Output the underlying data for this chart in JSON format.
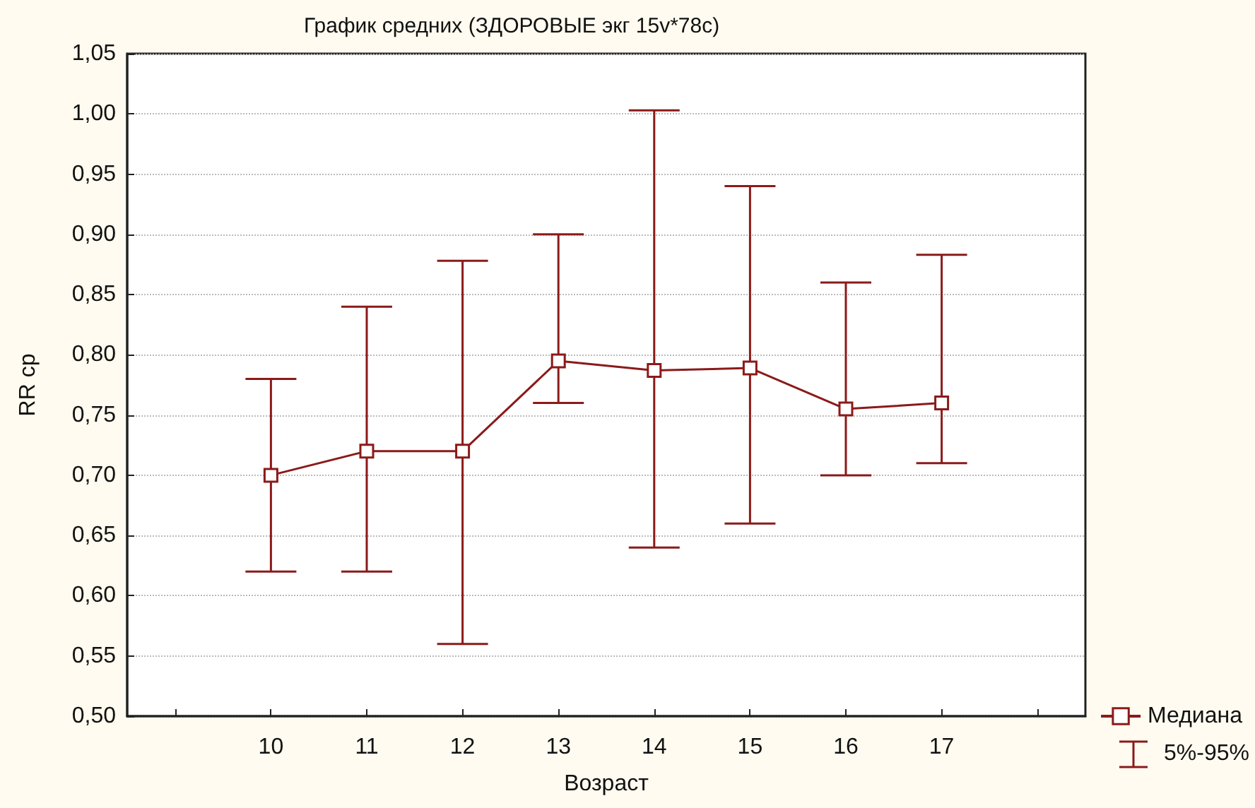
{
  "chart_data": {
    "type": "line",
    "title": "График средних (ЗДОРОВЫЕ экг 15v*78с)",
    "xlabel": "Возраст",
    "ylabel": "RR ср",
    "x": [
      10,
      11,
      12,
      13,
      14,
      15,
      16,
      17
    ],
    "series": [
      {
        "name": "Медиана",
        "color": "#8b1a1a",
        "values": [
          0.7,
          0.72,
          0.72,
          0.795,
          0.787,
          0.789,
          0.755,
          0.76
        ],
        "errors": [
          [
            0.62,
            0.78
          ],
          [
            0.62,
            0.84
          ],
          [
            0.56,
            0.878
          ],
          [
            0.76,
            0.9
          ],
          [
            0.64,
            1.003
          ],
          [
            0.66,
            0.94
          ],
          [
            0.7,
            0.86
          ],
          [
            0.71,
            0.883
          ]
        ]
      }
    ],
    "annotations": [
      "5%-95%"
    ],
    "xlim": [
      8.5,
      18.5
    ],
    "xticks": [
      {
        "value": 9,
        "label": null
      },
      10,
      11,
      12,
      13,
      14,
      15,
      16,
      17,
      {
        "value": 18,
        "label": null
      }
    ],
    "ylim": [
      0.5,
      1.05
    ],
    "yticks": [
      {
        "value": 0.5,
        "label": "0,50"
      },
      {
        "value": 0.55,
        "label": "0,55"
      },
      {
        "value": 0.6,
        "label": "0,60"
      },
      {
        "value": 0.65,
        "label": "0,65"
      },
      {
        "value": 0.7,
        "label": "0,70"
      },
      {
        "value": 0.75,
        "label": "0,75"
      },
      {
        "value": 0.8,
        "label": "0,80"
      },
      {
        "value": 0.85,
        "label": "0,85"
      },
      {
        "value": 0.9,
        "label": "0,90"
      },
      {
        "value": 0.95,
        "label": "0,95"
      },
      {
        "value": 1.0,
        "label": "1,00"
      },
      {
        "value": 1.05,
        "label": "1,05"
      }
    ],
    "grid": "y",
    "legend": "bottom right",
    "marker": "square",
    "line_style": "solid"
  }
}
